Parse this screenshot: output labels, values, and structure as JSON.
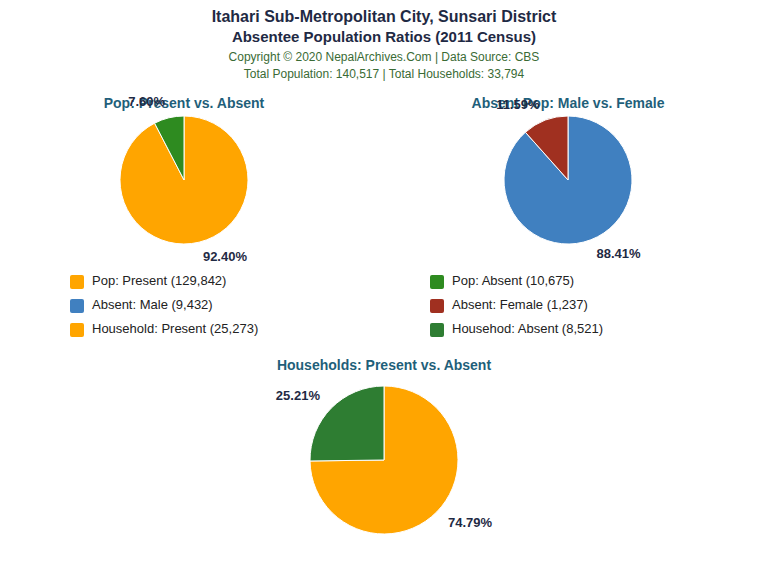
{
  "title": "Itahari Sub-Metropolitan City, Sunsari District",
  "subtitle": "Absentee Population Ratios (2011 Census)",
  "annotations": [
    "Copyright © 2020 NepalArchives.Com | Data Source: CBS",
    "Total Population: 140,517 | Total Households: 33,794"
  ],
  "chart_data": [
    {
      "type": "pie",
      "title": "Pop: Present vs. Absent",
      "categories": [
        "Pop: Present (129,842)",
        "Pop: Absent (10,675)"
      ],
      "values": [
        92.4,
        7.6
      ],
      "value_labels": [
        "92.40%",
        "7.60%"
      ],
      "colors": [
        "#FFA500",
        "#2E8B20"
      ],
      "data_labels": true,
      "legend": "bottom"
    },
    {
      "type": "pie",
      "title": "Absent Pop: Male vs. Female",
      "categories": [
        "Absent: Male (9,432)",
        "Absent: Female (1,237)"
      ],
      "values": [
        88.41,
        11.59
      ],
      "value_labels": [
        "88.41%",
        "11.59%"
      ],
      "colors": [
        "#4080C0",
        "#A03020"
      ],
      "data_labels": true,
      "legend": "bottom"
    },
    {
      "type": "pie",
      "title": "Households: Present vs. Absent",
      "categories": [
        "Household: Present (25,273)",
        "Househod: Absent (8,521)"
      ],
      "values": [
        74.79,
        25.21
      ],
      "value_labels": [
        "74.79%",
        "25.21%"
      ],
      "colors": [
        "#FFA500",
        "#2E7D32"
      ],
      "data_labels": true,
      "legend": "top"
    }
  ]
}
